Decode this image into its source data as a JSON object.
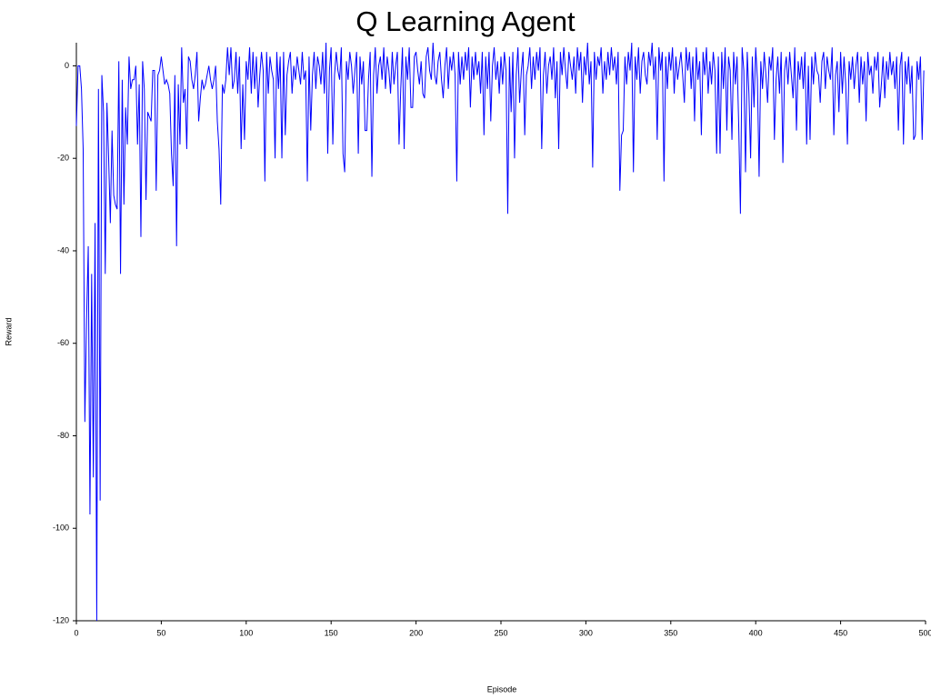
{
  "chart_data": {
    "type": "line",
    "title": "Q Learning Agent",
    "x_label": "Episode",
    "y_label": "Reward",
    "color": "#0000ff",
    "xlim": [
      0,
      500
    ],
    "ylim": [
      -120,
      5
    ],
    "xticks": [
      0,
      50,
      100,
      150,
      200,
      250,
      300,
      350,
      400,
      450,
      500
    ],
    "yticks": [
      -120,
      -100,
      -80,
      -60,
      -40,
      -20,
      0
    ],
    "grid": false,
    "x": [
      0,
      1,
      2,
      3,
      4,
      5,
      6,
      7,
      8,
      9,
      10,
      11,
      12,
      13,
      14,
      15,
      16,
      17,
      18,
      19,
      20,
      21,
      22,
      23,
      24,
      25,
      26,
      27,
      28,
      29,
      30,
      31,
      32,
      33,
      34,
      35,
      36,
      37,
      38,
      39,
      40,
      41,
      42,
      43,
      44,
      45,
      46,
      47,
      48,
      49,
      50,
      51,
      52,
      53,
      54,
      55,
      56,
      57,
      58,
      59,
      60,
      61,
      62,
      63,
      64,
      65,
      66,
      67,
      68,
      69,
      70,
      71,
      72,
      73,
      74,
      75,
      76,
      77,
      78,
      79,
      80,
      81,
      82,
      83,
      84,
      85,
      86,
      87,
      88,
      89,
      90,
      91,
      92,
      93,
      94,
      95,
      96,
      97,
      98,
      99,
      100,
      101,
      102,
      103,
      104,
      105,
      106,
      107,
      108,
      109,
      110,
      111,
      112,
      113,
      114,
      115,
      116,
      117,
      118,
      119,
      120,
      121,
      122,
      123,
      124,
      125,
      126,
      127,
      128,
      129,
      130,
      131,
      132,
      133,
      134,
      135,
      136,
      137,
      138,
      139,
      140,
      141,
      142,
      143,
      144,
      145,
      146,
      147,
      148,
      149,
      150,
      151,
      152,
      153,
      154,
      155,
      156,
      157,
      158,
      159,
      160,
      161,
      162,
      163,
      164,
      165,
      166,
      167,
      168,
      169,
      170,
      171,
      172,
      173,
      174,
      175,
      176,
      177,
      178,
      179,
      180,
      181,
      182,
      183,
      184,
      185,
      186,
      187,
      188,
      189,
      190,
      191,
      192,
      193,
      194,
      195,
      196,
      197,
      198,
      199,
      200,
      201,
      202,
      203,
      204,
      205,
      206,
      207,
      208,
      209,
      210,
      211,
      212,
      213,
      214,
      215,
      216,
      217,
      218,
      219,
      220,
      221,
      222,
      223,
      224,
      225,
      226,
      227,
      228,
      229,
      230,
      231,
      232,
      233,
      234,
      235,
      236,
      237,
      238,
      239,
      240,
      241,
      242,
      243,
      244,
      245,
      246,
      247,
      248,
      249,
      250,
      251,
      252,
      253,
      254,
      255,
      256,
      257,
      258,
      259,
      260,
      261,
      262,
      263,
      264,
      265,
      266,
      267,
      268,
      269,
      270,
      271,
      272,
      273,
      274,
      275,
      276,
      277,
      278,
      279,
      280,
      281,
      282,
      283,
      284,
      285,
      286,
      287,
      288,
      289,
      290,
      291,
      292,
      293,
      294,
      295,
      296,
      297,
      298,
      299,
      300,
      301,
      302,
      303,
      304,
      305,
      306,
      307,
      308,
      309,
      310,
      311,
      312,
      313,
      314,
      315,
      316,
      317,
      318,
      319,
      320,
      321,
      322,
      323,
      324,
      325,
      326,
      327,
      328,
      329,
      330,
      331,
      332,
      333,
      334,
      335,
      336,
      337,
      338,
      339,
      340,
      341,
      342,
      343,
      344,
      345,
      346,
      347,
      348,
      349,
      350,
      351,
      352,
      353,
      354,
      355,
      356,
      357,
      358,
      359,
      360,
      361,
      362,
      363,
      364,
      365,
      366,
      367,
      368,
      369,
      370,
      371,
      372,
      373,
      374,
      375,
      376,
      377,
      378,
      379,
      380,
      381,
      382,
      383,
      384,
      385,
      386,
      387,
      388,
      389,
      390,
      391,
      392,
      393,
      394,
      395,
      396,
      397,
      398,
      399,
      400,
      401,
      402,
      403,
      404,
      405,
      406,
      407,
      408,
      409,
      410,
      411,
      412,
      413,
      414,
      415,
      416,
      417,
      418,
      419,
      420,
      421,
      422,
      423,
      424,
      425,
      426,
      427,
      428,
      429,
      430,
      431,
      432,
      433,
      434,
      435,
      436,
      437,
      438,
      439,
      440,
      441,
      442,
      443,
      444,
      445,
      446,
      447,
      448,
      449,
      450,
      451,
      452,
      453,
      454,
      455,
      456,
      457,
      458,
      459,
      460,
      461,
      462,
      463,
      464,
      465,
      466,
      467,
      468,
      469,
      470,
      471,
      472,
      473,
      474,
      475,
      476,
      477,
      478,
      479,
      480,
      481,
      482,
      483,
      484,
      485,
      486,
      487,
      488,
      489,
      490,
      491,
      492,
      493,
      494,
      495,
      496,
      497,
      498,
      499
    ],
    "values": [
      -13,
      0,
      0,
      -5,
      -18,
      -77,
      -55,
      -39,
      -97,
      -45,
      -89,
      -34,
      -120,
      -5,
      -94,
      -2,
      -10,
      -45,
      -8,
      -20,
      -34,
      -14,
      -28,
      -30,
      -31,
      1,
      -45,
      -3,
      -30,
      -9,
      -17,
      2,
      -5,
      -3,
      -3,
      0,
      -17,
      -4,
      -37,
      1,
      -5,
      -29,
      -10,
      -11,
      -12,
      -1,
      -1,
      -27,
      -2,
      -1,
      2,
      -1,
      -4,
      -3,
      -4,
      -6,
      -19,
      -26,
      -2,
      -39,
      -4,
      -17,
      4,
      -8,
      -5,
      -18,
      2,
      1,
      -3,
      -5,
      -2,
      3,
      -12,
      -7,
      -3,
      -5,
      -4,
      -2,
      0,
      -3,
      -5,
      -3,
      0,
      -12,
      -18,
      -30,
      -4,
      -6,
      -3,
      4,
      -2,
      4,
      -5,
      -3,
      3,
      -6,
      2,
      -18,
      -4,
      -16,
      1,
      -3,
      4,
      -6,
      3,
      -5,
      2,
      -9,
      -2,
      3,
      -1,
      -25,
      3,
      -6,
      2,
      -1,
      -3,
      -20,
      3,
      -5,
      2,
      -20,
      3,
      -15,
      -2,
      1,
      3,
      -6,
      0,
      -3,
      2,
      -1,
      -4,
      3,
      -3,
      -1,
      -25,
      2,
      -14,
      -2,
      3,
      -5,
      2,
      0,
      -4,
      3,
      -6,
      5,
      -19,
      -1,
      4,
      -17,
      -2,
      3,
      -1,
      -3,
      4,
      -19,
      -23,
      1,
      -3,
      3,
      0,
      -6,
      -1,
      3,
      -19,
      2,
      -4,
      1,
      -14,
      -14,
      -3,
      3,
      -24,
      -2,
      4,
      -6,
      0,
      2,
      -3,
      4,
      -5,
      2,
      -1,
      -6,
      3,
      -4,
      0,
      3,
      -17,
      -5,
      4,
      -18,
      2,
      -3,
      4,
      -9,
      -9,
      2,
      3,
      -1,
      -4,
      1,
      -6,
      -7,
      2,
      4,
      -1,
      -3,
      5,
      -2,
      -4,
      1,
      3,
      -3,
      -7,
      0,
      4,
      -5,
      2,
      -1,
      3,
      -2,
      -25,
      3,
      -4,
      2,
      -3,
      3,
      -1,
      4,
      -9,
      2,
      -3,
      3,
      -2,
      1,
      -6,
      3,
      -15,
      2,
      -5,
      3,
      -12,
      0,
      4,
      -3,
      1,
      -6,
      2,
      -4,
      3,
      -1,
      -32,
      2,
      -10,
      3,
      -20,
      -2,
      4,
      -8,
      -1,
      3,
      -15,
      -2,
      0,
      4,
      -5,
      2,
      -3,
      3,
      -1,
      4,
      -18,
      -2,
      3,
      -6,
      0,
      2,
      -3,
      4,
      -7,
      1,
      -18,
      3,
      -2,
      4,
      -1,
      -5,
      3,
      0,
      -3,
      2,
      -6,
      4,
      -1,
      3,
      -8,
      2,
      -2,
      5,
      -4,
      1,
      -22,
      3,
      -3,
      2,
      0,
      4,
      -6,
      1,
      -3,
      3,
      -2,
      4,
      -1,
      2,
      -4,
      3,
      -27,
      -15,
      -14,
      2,
      -4,
      3,
      -1,
      5,
      -23,
      2,
      -3,
      4,
      -6,
      1,
      3,
      -2,
      -4,
      3,
      0,
      5,
      -3,
      2,
      -16,
      4,
      -1,
      3,
      -25,
      2,
      -5,
      3,
      -1,
      4,
      -6,
      2,
      -3,
      0,
      3,
      -2,
      -8,
      4,
      -1,
      3,
      -5,
      2,
      -12,
      4,
      -3,
      1,
      -15,
      3,
      -2,
      4,
      -6,
      1,
      -4,
      3,
      -1,
      -19,
      2,
      -19,
      3,
      -5,
      4,
      -14,
      2,
      -1,
      -16,
      3,
      -4,
      2,
      -13,
      -32,
      4,
      -1,
      -23,
      3,
      -6,
      -20,
      2,
      -9,
      4,
      -3,
      -24,
      1,
      -5,
      3,
      -2,
      -8,
      2,
      -1,
      4,
      -16,
      -3,
      2,
      -6,
      3,
      -21,
      -1,
      2,
      -4,
      3,
      -2,
      -7,
      4,
      -14,
      1,
      -3,
      2,
      -5,
      3,
      -17,
      0,
      -16,
      2,
      -4,
      3,
      -1,
      -2,
      -8,
      1,
      3,
      -5,
      2,
      -1,
      -3,
      4,
      -15,
      -2,
      1,
      -10,
      3,
      -6,
      2,
      -4,
      -17,
      1,
      -3,
      2,
      -5,
      0,
      3,
      -8,
      2,
      -4,
      1,
      -12,
      3,
      -2,
      0,
      -6,
      2,
      -1,
      3,
      -9,
      -4,
      2,
      -7,
      1,
      -3,
      3,
      -2,
      1,
      -5,
      2,
      -14,
      0,
      3,
      -17,
      1,
      -4,
      2,
      -6,
      0,
      -16,
      -15,
      1,
      -3,
      2,
      -16,
      -1
    ]
  }
}
